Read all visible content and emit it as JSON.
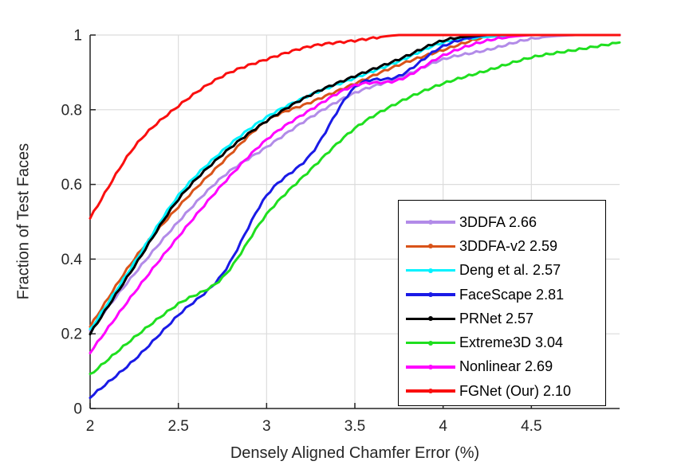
{
  "chart_data": {
    "type": "line",
    "title": "",
    "xlabel": "Densely Aligned Chamfer Error (%)",
    "ylabel": "Fraction of Test Faces",
    "xlim": [
      2,
      5
    ],
    "ylim": [
      0,
      1
    ],
    "grid": true,
    "legend_position": "inside lower right",
    "axis_color": "#262626",
    "grid_color": "#dcdcdc",
    "xticks": [
      2,
      2.5,
      3,
      3.5,
      4,
      4.5
    ],
    "xtick_labels": [
      "2",
      "2.5",
      "3",
      "3.5",
      "4",
      "4.5"
    ],
    "yticks": [
      0,
      0.2,
      0.4,
      0.6,
      0.8,
      1
    ],
    "ytick_labels": [
      "0",
      "0.2",
      "0.4",
      "0.6",
      "0.8",
      "1"
    ],
    "x": [
      2.0,
      2.25,
      2.5,
      2.75,
      3.0,
      3.25,
      3.5,
      3.75,
      4.0,
      4.25,
      4.5,
      4.75,
      5.0
    ],
    "series": [
      {
        "key": "3ddfa",
        "label": "3DDFA 2.66",
        "score": 2.66,
        "color": "#b28be8",
        "values": [
          0.21,
          0.36,
          0.5,
          0.62,
          0.7,
          0.78,
          0.845,
          0.885,
          0.935,
          0.96,
          0.99,
          1.0,
          1.0
        ]
      },
      {
        "key": "3ddfa-v2",
        "label": "3DDFA-v2 2.59",
        "score": 2.59,
        "color": "#d95319",
        "values": [
          0.22,
          0.4,
          0.54,
          0.66,
          0.77,
          0.82,
          0.87,
          0.92,
          0.96,
          0.995,
          1.0,
          1.0,
          1.0
        ]
      },
      {
        "key": "deng",
        "label": "Deng et al. 2.57",
        "score": 2.57,
        "color": "#00f2ff",
        "values": [
          0.21,
          0.39,
          0.57,
          0.69,
          0.78,
          0.84,
          0.885,
          0.93,
          0.98,
          0.995,
          1.0,
          1.0,
          1.0
        ]
      },
      {
        "key": "facescape",
        "label": "FaceScape 2.81",
        "score": 2.81,
        "color": "#1a1ae6",
        "values": [
          0.03,
          0.13,
          0.25,
          0.36,
          0.57,
          0.68,
          0.86,
          0.89,
          0.97,
          1.0,
          1.0,
          1.0,
          1.0
        ]
      },
      {
        "key": "prnet",
        "label": "PRNet 2.57",
        "score": 2.57,
        "color": "#000000",
        "values": [
          0.2,
          0.38,
          0.56,
          0.68,
          0.77,
          0.84,
          0.89,
          0.935,
          0.985,
          1.0,
          1.0,
          1.0,
          1.0
        ]
      },
      {
        "key": "extreme3d",
        "label": "Extreme3D 3.04",
        "score": 3.04,
        "color": "#1fdf1f",
        "values": [
          0.09,
          0.19,
          0.28,
          0.35,
          0.52,
          0.64,
          0.75,
          0.82,
          0.87,
          0.905,
          0.94,
          0.96,
          0.98
        ]
      },
      {
        "key": "nonlinear",
        "label": "Nonlinear 2.69",
        "score": 2.69,
        "color": "#ff00ff",
        "values": [
          0.15,
          0.31,
          0.46,
          0.6,
          0.72,
          0.8,
          0.865,
          0.88,
          0.945,
          0.985,
          1.0,
          1.0,
          1.0
        ]
      },
      {
        "key": "fgnet",
        "label": "FGNet (Our) 2.10",
        "score": 2.1,
        "color": "#fa0f0f",
        "values": [
          0.51,
          0.7,
          0.81,
          0.89,
          0.935,
          0.97,
          0.985,
          1.0,
          1.0,
          1.0,
          1.0,
          1.0,
          1.0
        ]
      }
    ]
  }
}
